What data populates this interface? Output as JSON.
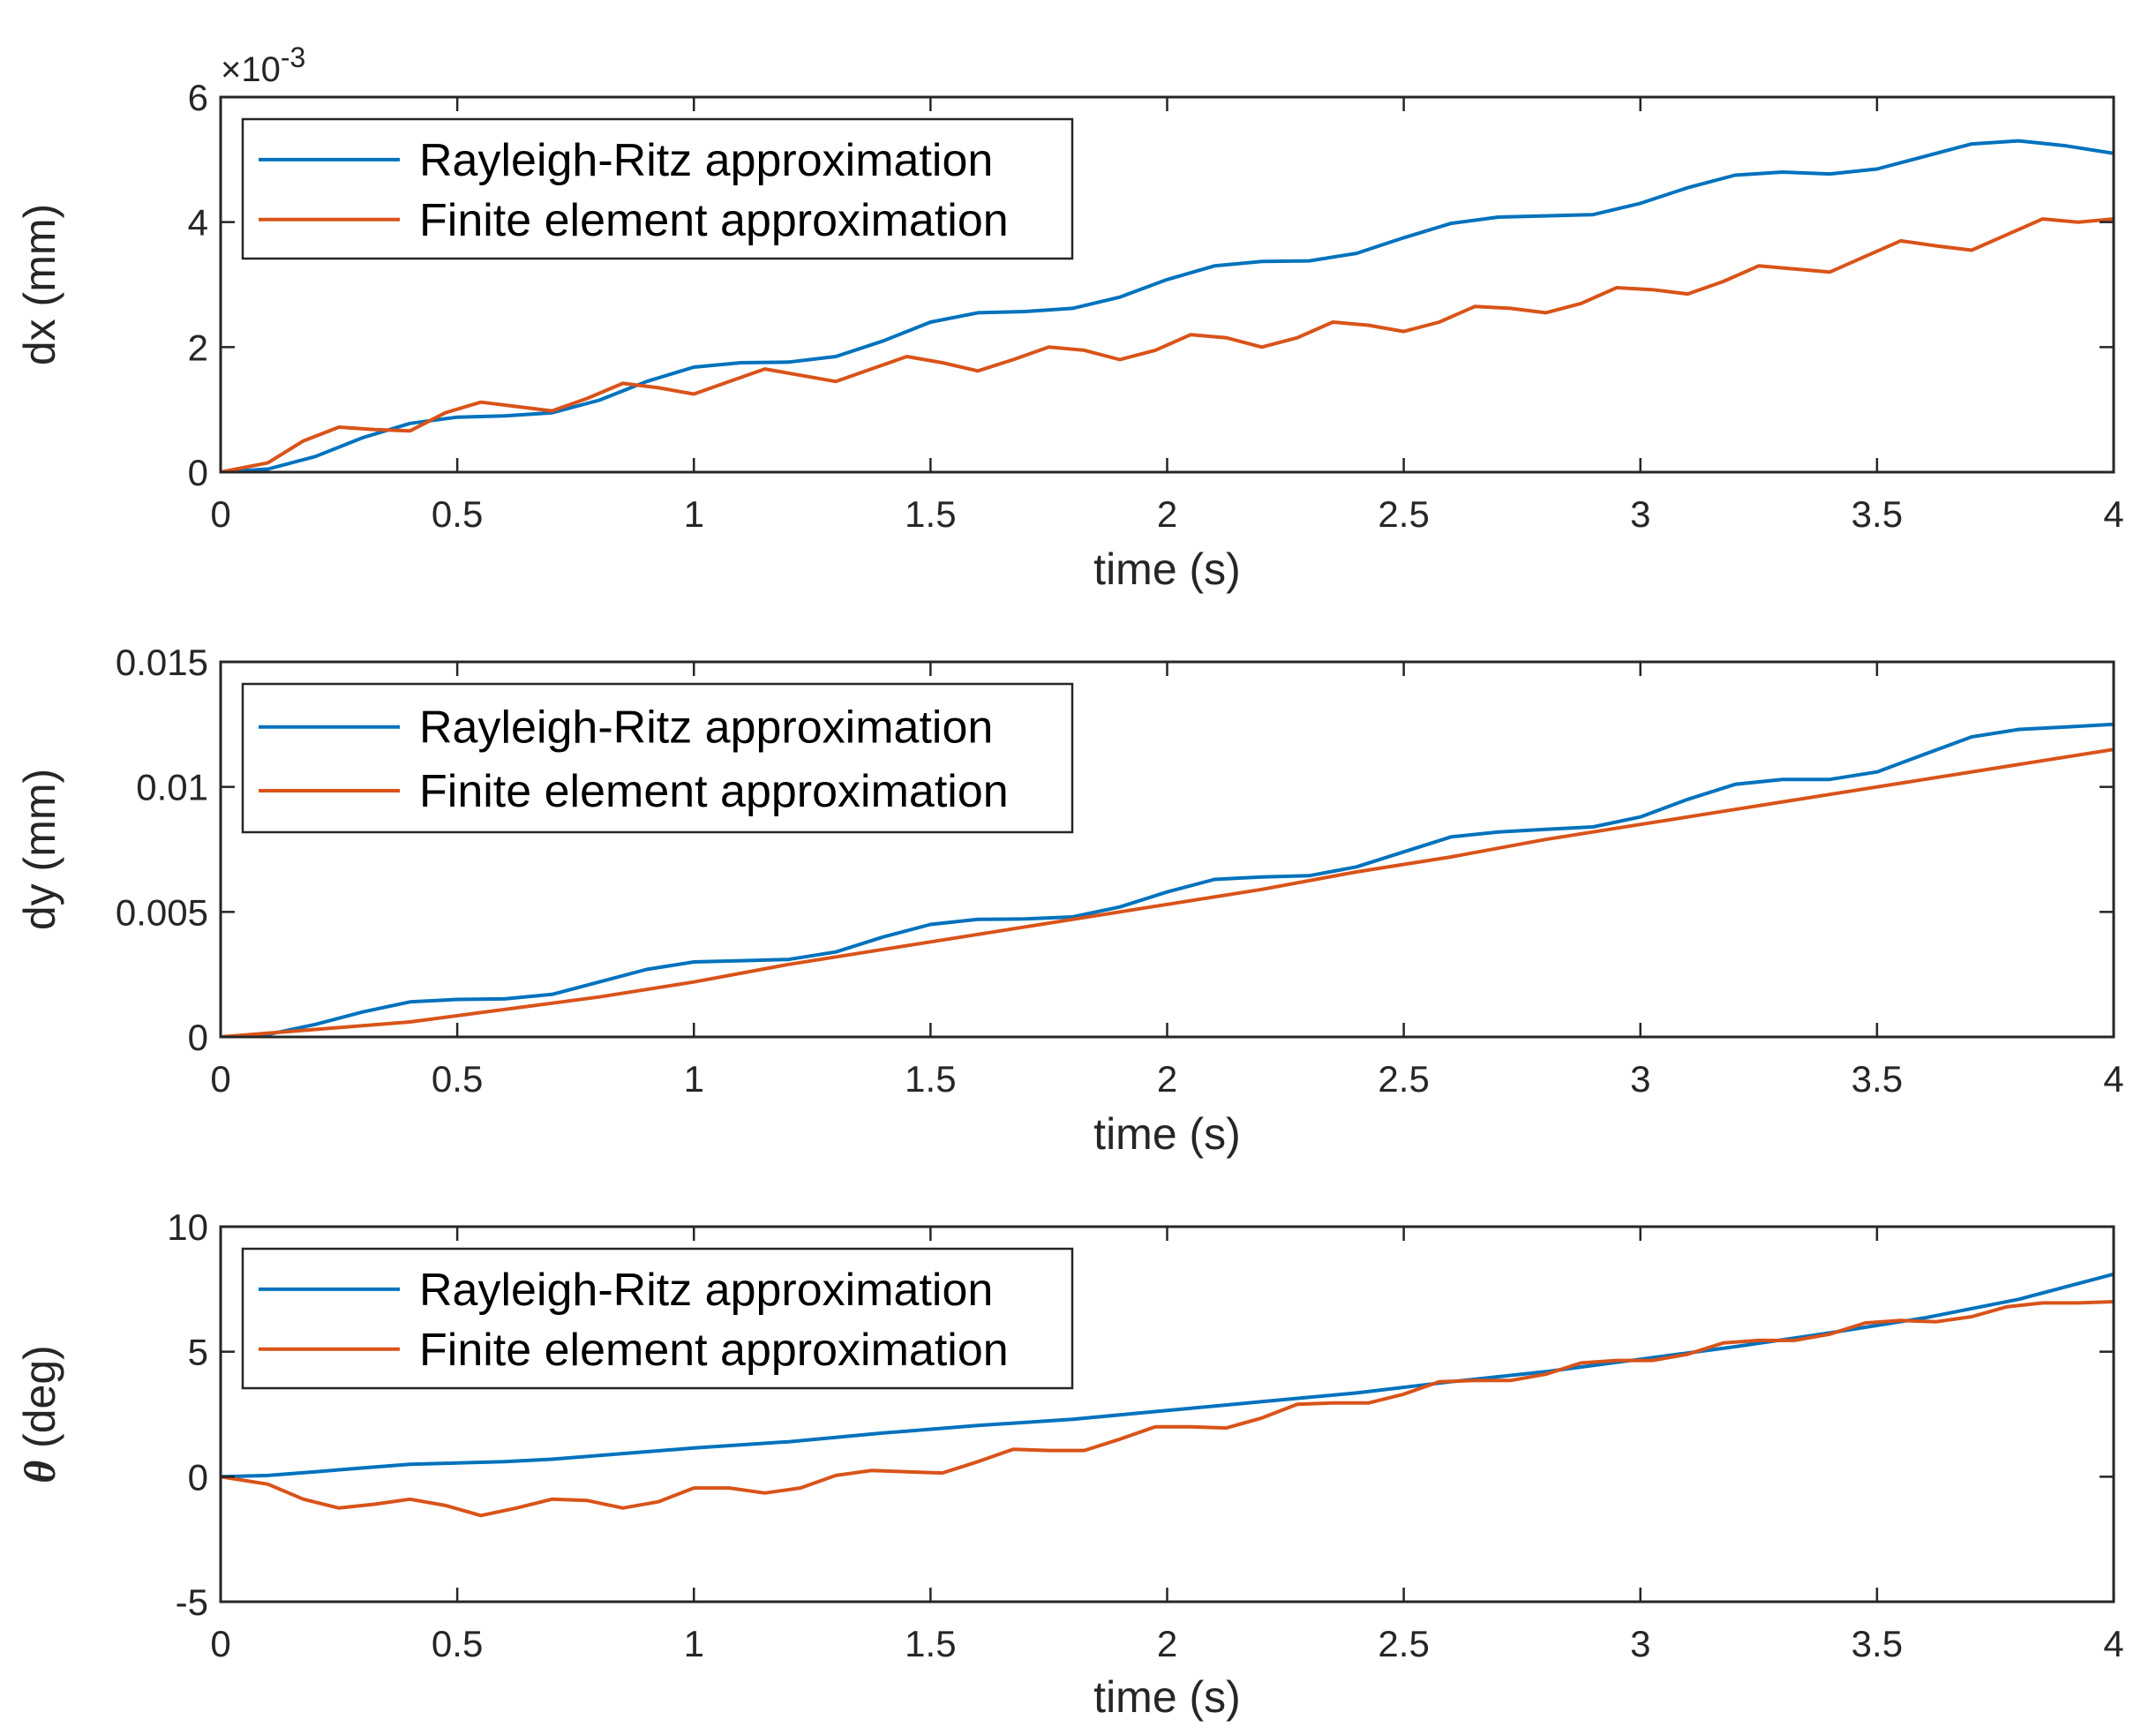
{
  "chart_data": [
    {
      "type": "line",
      "id": "dx",
      "xlabel": "time (s)",
      "ylabel": "dx (mm)",
      "exponent_label": "×10",
      "exponent_power": "-3",
      "xlim": [
        0,
        4
      ],
      "ylim": [
        0,
        6
      ],
      "xticks": [
        0,
        0.5,
        1,
        1.5,
        2,
        2.5,
        3,
        3.5,
        4
      ],
      "xtick_labels": [
        "0",
        "0.5",
        "1",
        "1.5",
        "2",
        "2.5",
        "3",
        "3.5",
        "4"
      ],
      "yticks": [
        0,
        2,
        4,
        6
      ],
      "ytick_labels": [
        "0",
        "2",
        "4",
        "6"
      ],
      "legend_position": "top-left",
      "series": [
        {
          "name": "Rayleigh-Ritz approximation",
          "color": "#0072BD",
          "x": [
            0,
            0.1,
            0.2,
            0.3,
            0.4,
            0.5,
            0.6,
            0.7,
            0.8,
            0.9,
            1.0,
            1.1,
            1.2,
            1.3,
            1.4,
            1.5,
            1.6,
            1.7,
            1.8,
            1.9,
            2.0,
            2.1,
            2.2,
            2.3,
            2.4,
            2.5,
            2.6,
            2.7,
            2.8,
            2.9,
            3.0,
            3.1,
            3.2,
            3.3,
            3.4,
            3.5,
            3.6,
            3.7,
            3.8,
            3.9,
            4.0
          ],
          "y": [
            0,
            0.05,
            0.25,
            0.55,
            0.78,
            0.88,
            0.9,
            0.95,
            1.15,
            1.45,
            1.68,
            1.75,
            1.76,
            1.85,
            2.1,
            2.4,
            2.55,
            2.57,
            2.62,
            2.8,
            3.08,
            3.3,
            3.37,
            3.38,
            3.5,
            3.75,
            3.98,
            4.08,
            4.1,
            4.12,
            4.3,
            4.55,
            4.75,
            4.8,
            4.77,
            4.85,
            5.05,
            5.25,
            5.3,
            5.22,
            5.1
          ]
        },
        {
          "name": "Finite element approximation",
          "color": "#D95319",
          "x": [
            0,
            0.1,
            0.175,
            0.25,
            0.325,
            0.4,
            0.475,
            0.55,
            0.625,
            0.7,
            0.775,
            0.85,
            0.925,
            1.0,
            1.075,
            1.15,
            1.225,
            1.3,
            1.375,
            1.45,
            1.525,
            1.6,
            1.675,
            1.75,
            1.825,
            1.9,
            1.975,
            2.05,
            2.125,
            2.2,
            2.275,
            2.35,
            2.425,
            2.5,
            2.575,
            2.65,
            2.725,
            2.8,
            2.875,
            2.95,
            3.025,
            3.1,
            3.175,
            3.25,
            3.325,
            3.4,
            3.475,
            3.55,
            3.625,
            3.7,
            3.775,
            3.85,
            3.925,
            4.0
          ],
          "y": [
            0,
            0.15,
            0.5,
            0.72,
            0.68,
            0.66,
            0.95,
            1.12,
            1.05,
            0.98,
            1.18,
            1.42,
            1.35,
            1.25,
            1.45,
            1.65,
            1.55,
            1.45,
            1.65,
            1.85,
            1.75,
            1.62,
            1.8,
            2.0,
            1.95,
            1.8,
            1.95,
            2.2,
            2.15,
            2.0,
            2.15,
            2.4,
            2.35,
            2.25,
            2.4,
            2.65,
            2.62,
            2.55,
            2.7,
            2.95,
            2.92,
            2.85,
            3.05,
            3.3,
            3.25,
            3.2,
            3.45,
            3.7,
            3.62,
            3.55,
            3.8,
            4.05,
            4.0,
            4.05
          ]
        }
      ]
    },
    {
      "type": "line",
      "id": "dy",
      "xlabel": "time (s)",
      "ylabel": "dy (mm)",
      "xlim": [
        0,
        4
      ],
      "ylim": [
        0,
        0.015
      ],
      "xticks": [
        0,
        0.5,
        1,
        1.5,
        2,
        2.5,
        3,
        3.5,
        4
      ],
      "xtick_labels": [
        "0",
        "0.5",
        "1",
        "1.5",
        "2",
        "2.5",
        "3",
        "3.5",
        "4"
      ],
      "yticks": [
        0,
        0.005,
        0.01,
        0.015
      ],
      "ytick_labels": [
        "0",
        "0.005",
        "0.01",
        "0.015"
      ],
      "legend_position": "top-left",
      "series": [
        {
          "name": "Rayleigh-Ritz approximation",
          "color": "#0072BD",
          "x": [
            0,
            0.1,
            0.2,
            0.3,
            0.4,
            0.5,
            0.6,
            0.7,
            0.8,
            0.9,
            1.0,
            1.1,
            1.2,
            1.3,
            1.4,
            1.5,
            1.6,
            1.7,
            1.8,
            1.9,
            2.0,
            2.1,
            2.2,
            2.3,
            2.4,
            2.5,
            2.6,
            2.7,
            2.8,
            2.9,
            3.0,
            3.1,
            3.2,
            3.3,
            3.4,
            3.5,
            3.6,
            3.7,
            3.8,
            3.9,
            4.0
          ],
          "y": [
            0,
            0.0001,
            0.0005,
            0.001,
            0.0014,
            0.0015,
            0.00152,
            0.0017,
            0.0022,
            0.0027,
            0.003,
            0.00305,
            0.0031,
            0.0034,
            0.004,
            0.0045,
            0.0047,
            0.00472,
            0.0048,
            0.0052,
            0.0058,
            0.0063,
            0.0064,
            0.00645,
            0.0068,
            0.0074,
            0.008,
            0.0082,
            0.0083,
            0.0084,
            0.0088,
            0.0095,
            0.0101,
            0.0103,
            0.0103,
            0.0106,
            0.0113,
            0.012,
            0.0123,
            0.0124,
            0.0125
          ]
        },
        {
          "name": "Finite element approximation",
          "color": "#D95319",
          "x": [
            0,
            0.2,
            0.4,
            0.6,
            0.8,
            1.0,
            1.2,
            1.4,
            1.6,
            1.8,
            2.0,
            2.2,
            2.4,
            2.6,
            2.8,
            3.0,
            3.2,
            3.4,
            3.6,
            3.8,
            4.0
          ],
          "y": [
            0,
            0.0003,
            0.0006,
            0.0011,
            0.0016,
            0.0022,
            0.0029,
            0.0035,
            0.0041,
            0.0047,
            0.0053,
            0.0059,
            0.0066,
            0.0072,
            0.0079,
            0.0085,
            0.0091,
            0.0097,
            0.0103,
            0.0109,
            0.0115
          ]
        }
      ]
    },
    {
      "type": "line",
      "id": "theta",
      "xlabel": "time (s)",
      "ylabel_symbol": "θ",
      "ylabel_rest": " (deg)",
      "xlim": [
        0,
        4
      ],
      "ylim": [
        -5,
        10
      ],
      "xticks": [
        0,
        0.5,
        1,
        1.5,
        2,
        2.5,
        3,
        3.5,
        4
      ],
      "xtick_labels": [
        "0",
        "0.5",
        "1",
        "1.5",
        "2",
        "2.5",
        "3",
        "3.5",
        "4"
      ],
      "yticks": [
        -5,
        0,
        5,
        10
      ],
      "ytick_labels": [
        "-5",
        "0",
        "5",
        "10"
      ],
      "legend_position": "top-left",
      "series": [
        {
          "name": "Rayleigh-Ritz approximation",
          "color": "#0072BD",
          "x": [
            0,
            0.1,
            0.2,
            0.3,
            0.4,
            0.5,
            0.6,
            0.7,
            0.8,
            0.9,
            1.0,
            1.2,
            1.4,
            1.6,
            1.8,
            2.0,
            2.2,
            2.4,
            2.6,
            2.8,
            3.0,
            3.2,
            3.4,
            3.6,
            3.8,
            4.0
          ],
          "y": [
            0,
            0.05,
            0.2,
            0.35,
            0.5,
            0.55,
            0.6,
            0.7,
            0.85,
            1.0,
            1.15,
            1.4,
            1.75,
            2.05,
            2.3,
            2.65,
            3.0,
            3.35,
            3.8,
            4.2,
            4.7,
            5.2,
            5.75,
            6.35,
            7.1,
            8.1
          ]
        },
        {
          "name": "Finite element approximation",
          "color": "#D95319",
          "x": [
            0,
            0.1,
            0.175,
            0.25,
            0.325,
            0.4,
            0.475,
            0.55,
            0.625,
            0.7,
            0.775,
            0.85,
            0.925,
            1.0,
            1.075,
            1.15,
            1.225,
            1.3,
            1.375,
            1.45,
            1.525,
            1.6,
            1.675,
            1.75,
            1.825,
            1.9,
            1.975,
            2.05,
            2.125,
            2.2,
            2.275,
            2.35,
            2.425,
            2.5,
            2.575,
            2.65,
            2.725,
            2.8,
            2.875,
            2.95,
            3.025,
            3.1,
            3.175,
            3.25,
            3.325,
            3.4,
            3.475,
            3.55,
            3.625,
            3.7,
            3.775,
            3.85,
            3.925,
            4.0
          ],
          "y": [
            0,
            -0.3,
            -0.9,
            -1.25,
            -1.1,
            -0.9,
            -1.15,
            -1.55,
            -1.25,
            -0.9,
            -0.95,
            -1.25,
            -1.0,
            -0.45,
            -0.45,
            -0.65,
            -0.45,
            0.05,
            0.25,
            0.2,
            0.15,
            0.6,
            1.1,
            1.05,
            1.05,
            1.5,
            2.0,
            2.0,
            1.95,
            2.35,
            2.9,
            2.95,
            2.95,
            3.3,
            3.8,
            3.85,
            3.85,
            4.1,
            4.55,
            4.65,
            4.65,
            4.9,
            5.35,
            5.45,
            5.45,
            5.7,
            6.15,
            6.25,
            6.2,
            6.4,
            6.8,
            6.95,
            6.95,
            7.0
          ]
        }
      ]
    }
  ]
}
